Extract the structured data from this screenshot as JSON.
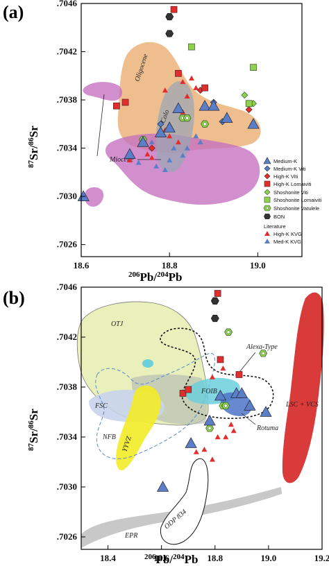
{
  "panels": [
    {
      "label": "(a)",
      "xlabel_base": "Pb/",
      "xlabel_sup1": "206",
      "xlabel_sup2": "204",
      "xlabel_end": "Pb",
      "ylabel_sup1": "87",
      "ylabel_mid": "Sr/",
      "ylabel_sup2": "86",
      "ylabel_end": "Sr"
    },
    {
      "label": "(b)",
      "xlabel_base": "Pb/",
      "xlabel_sup1": "206",
      "xlabel_sup2": "204",
      "xlabel_end": "Pb",
      "ylabel_sup1": "87",
      "ylabel_mid": "Sr/",
      "ylabel_sup2": "86",
      "ylabel_end": "Sr"
    }
  ],
  "fields_a": {
    "oligocene": "Oligocene",
    "colo": "Colo",
    "miocene": "Miocene"
  },
  "fields_b": {
    "otj": "OTJ",
    "fsc": "FSC",
    "nfb": "NFB",
    "yyvz": "YYVZ",
    "foib": "FOIB",
    "alexa": "Alexa-Type",
    "rotuma": "Rotuma",
    "lsc": "LSC + VCS",
    "epr": "EPR",
    "odp": "ODP 834"
  },
  "legend": {
    "items": [
      "Medium-K",
      "Medium-K Viti",
      "High-K Viti",
      "High-K Lomaiviti",
      "Shoshonite Viti",
      "Shoshonite Lomaiviti",
      "Shoshonite Vatulele",
      "BON"
    ],
    "literature_title": "Literature",
    "literature_items": [
      "High-K KVG",
      "Med-K KVG"
    ]
  },
  "colors": {
    "medium_k": "#5b7fc6",
    "high_k": "#e22d2d",
    "shoshonite": "#8fd14a",
    "bon": "#333333",
    "oligocene": "#e9a86a",
    "colo": "#9aa6b4",
    "miocene": "#c470c0",
    "otj": "#e6edb0",
    "fsc": "#c8d4ec",
    "yyvz": "#f2ec2a",
    "foib": "#6ccfdc",
    "lsc": "#d93a3a",
    "epr": "#c8c8c8",
    "rotuma": "#4d74c8"
  },
  "chart_data": [
    {
      "type": "scatter",
      "panel": "a",
      "xlabel": "206Pb/204Pb",
      "ylabel": "87Sr/86Sr",
      "xlim": [
        18.6,
        19.1
      ],
      "ylim": [
        0.7025,
        0.7046
      ],
      "x_ticks": [
        "18.6",
        "18.8",
        "19.0"
      ],
      "y_ticks": [
        ".7046",
        ".7042",
        ".7038",
        ".7034",
        ".7030",
        ".7026"
      ],
      "series": [
        {
          "name": "Medium-K",
          "points": [
            [
              18.605,
              0.703
            ],
            [
              18.71,
              0.70335
            ],
            [
              18.78,
              0.70353
            ],
            [
              18.8,
              0.70357
            ],
            [
              18.82,
              0.70373
            ],
            [
              18.88,
              0.70375
            ],
            [
              18.9,
              0.70375
            ],
            [
              18.93,
              0.70365
            ],
            [
              18.99,
              0.7036
            ],
            [
              18.74,
              0.70345
            ]
          ]
        },
        {
          "name": "Medium-K Viti",
          "points": [
            [
              18.78,
              0.7036
            ],
            [
              18.9,
              0.70378
            ],
            [
              18.92,
              0.70362
            ]
          ]
        },
        {
          "name": "High-K Viti",
          "points": [
            [
              18.76,
              0.7034
            ],
            [
              18.87,
              0.70388
            ],
            [
              18.98,
              0.70372
            ]
          ]
        },
        {
          "name": "High-K Lomaiviti",
          "points": [
            [
              18.81,
              0.70455
            ],
            [
              18.68,
              0.70375
            ],
            [
              18.7,
              0.70378
            ],
            [
              18.82,
              0.70402
            ],
            [
              18.88,
              0.7039
            ]
          ]
        },
        {
          "name": "Shoshonite Viti",
          "points": [
            [
              18.97,
              0.70384
            ],
            [
              18.99,
              0.70377
            ]
          ]
        },
        {
          "name": "Shoshonite Lomaiviti",
          "points": [
            [
              18.85,
              0.70424
            ],
            [
              18.99,
              0.70407
            ],
            [
              18.98,
              0.70377
            ]
          ]
        },
        {
          "name": "Shoshonite Vatulele",
          "points": [
            [
              18.83,
              0.70365
            ],
            [
              18.84,
              0.70365
            ],
            [
              18.88,
              0.7036
            ],
            [
              18.74,
              0.70347
            ]
          ]
        },
        {
          "name": "BON",
          "points": [
            [
              18.8,
              0.70449
            ],
            [
              18.8,
              0.70435
            ]
          ]
        },
        {
          "name": "High-K KVG",
          "points": [
            [
              18.79,
              0.70388
            ],
            [
              18.83,
              0.70395
            ],
            [
              18.85,
              0.70398
            ],
            [
              18.86,
              0.7039
            ],
            [
              18.84,
              0.70383
            ],
            [
              18.83,
              0.7037
            ],
            [
              18.8,
              0.7035
            ],
            [
              18.75,
              0.70335
            ],
            [
              18.76,
              0.70332
            ],
            [
              18.71,
              0.7033
            ],
            [
              18.82,
              0.70345
            ],
            [
              18.79,
              0.70355
            ]
          ]
        },
        {
          "name": "Med-K KVG",
          "points": [
            [
              18.73,
              0.70328
            ],
            [
              18.77,
              0.70325
            ],
            [
              18.79,
              0.70322
            ],
            [
              18.8,
              0.7033
            ],
            [
              18.76,
              0.70345
            ],
            [
              18.84,
              0.7034
            ],
            [
              18.86,
              0.7035
            ],
            [
              18.87,
              0.70345
            ],
            [
              18.81,
              0.7034
            ],
            [
              18.83,
              0.70334
            ]
          ]
        }
      ]
    },
    {
      "type": "scatter",
      "panel": "b",
      "xlabel": "206Pb/204Pb",
      "ylabel": "87Sr/86Sr",
      "xlim": [
        18.3,
        19.2
      ],
      "ylim": [
        0.7025,
        0.7046
      ],
      "x_ticks": [
        "18.4",
        "18.6",
        "18.8",
        "19.0",
        "19.2"
      ],
      "y_ticks": [
        ".7046",
        ".7042",
        ".7038",
        ".7034",
        ".7030",
        ".7026"
      ],
      "series": [
        {
          "name": "Medium-K",
          "points": [
            [
              18.605,
              0.703
            ],
            [
              18.71,
              0.70335
            ],
            [
              18.78,
              0.70353
            ],
            [
              18.82,
              0.70373
            ],
            [
              18.88,
              0.70375
            ],
            [
              18.9,
              0.70375
            ],
            [
              18.93,
              0.70365
            ],
            [
              18.99,
              0.7036
            ]
          ]
        },
        {
          "name": "High-K Lomaiviti",
          "points": [
            [
              18.81,
              0.70455
            ],
            [
              18.68,
              0.70375
            ],
            [
              18.7,
              0.70378
            ],
            [
              18.82,
              0.70402
            ],
            [
              18.89,
              0.7039
            ]
          ]
        },
        {
          "name": "Shoshonite",
          "points": [
            [
              18.83,
              0.70365
            ],
            [
              18.84,
              0.70365
            ],
            [
              18.78,
              0.70347
            ],
            [
              18.98,
              0.70407
            ],
            [
              18.85,
              0.70424
            ]
          ]
        },
        {
          "name": "BON",
          "points": [
            [
              18.8,
              0.70449
            ],
            [
              18.8,
              0.70435
            ]
          ]
        },
        {
          "name": "KVG",
          "points": [
            [
              18.79,
              0.70388
            ],
            [
              18.83,
              0.70395
            ],
            [
              18.76,
              0.7033
            ],
            [
              18.79,
              0.70322
            ],
            [
              18.84,
              0.7034
            ],
            [
              18.86,
              0.7035
            ],
            [
              18.73,
              0.70328
            ],
            [
              18.87,
              0.70345
            ],
            [
              18.81,
              0.7034
            ]
          ]
        }
      ]
    }
  ]
}
